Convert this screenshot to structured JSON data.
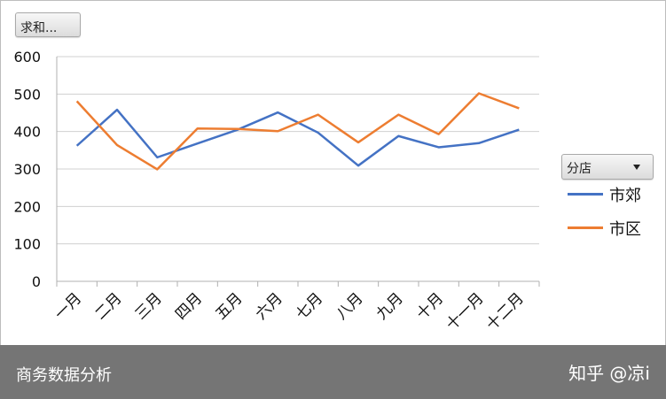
{
  "fields": {
    "value_field": "求和...",
    "filter_field": "分店"
  },
  "footer": {
    "left_text": "商务数据分析",
    "watermark": "知乎 @凉i"
  },
  "chart_data": {
    "type": "line",
    "categories": [
      "一月",
      "二月",
      "三月",
      "四月",
      "五月",
      "六月",
      "七月",
      "八月",
      "九月",
      "十月",
      "十一月",
      "十二月"
    ],
    "series": [
      {
        "name": "市郊",
        "color": "#4472c4",
        "values": [
          362,
          458,
          331,
          368,
          405,
          451,
          397,
          309,
          388,
          358,
          369,
          405
        ]
      },
      {
        "name": "市区",
        "color": "#ed7d31",
        "values": [
          481,
          364,
          299,
          408,
          407,
          401,
          445,
          371,
          445,
          393,
          502,
          462
        ]
      }
    ],
    "ylim": [
      0,
      600
    ],
    "yticks": [
      0,
      100,
      200,
      300,
      400,
      500,
      600
    ],
    "grid": true,
    "legend_position": "right"
  }
}
